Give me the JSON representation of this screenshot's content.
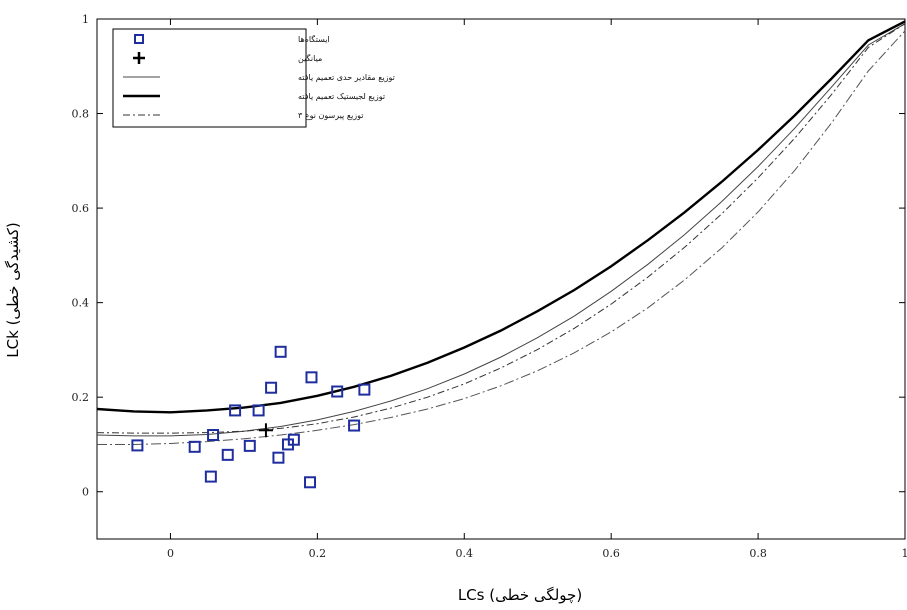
{
  "chart_data": {
    "type": "scatter",
    "xlabel": "LCs (چولگی خطی)",
    "ylabel": "LCk (کشیدگی خطی)",
    "xlim": [
      -0.1,
      1.0
    ],
    "ylim": [
      -0.1,
      1.0
    ],
    "xticks": [
      0,
      0.2,
      0.4,
      0.6,
      0.8,
      1
    ],
    "yticks": [
      0,
      0.2,
      0.4,
      0.6,
      0.8,
      1
    ],
    "x_tick_labels": [
      "0",
      "0.2",
      "0.4",
      "0.6",
      "0.8",
      "1"
    ],
    "y_tick_labels": [
      "0",
      "0.2",
      "0.4",
      "0.6",
      "0.8",
      "1"
    ],
    "grid": false,
    "legend_position": "top-left",
    "legend": [
      {
        "label": "ایستگاه‌ها",
        "style": "square-marker",
        "color": "#1f2e9e"
      },
      {
        "label": "میانگین",
        "style": "plus-marker",
        "color": "#000000"
      },
      {
        "label": "توزیع مقادیر حدی تعمیم یافته",
        "style": "thin-solid",
        "color": "#444444"
      },
      {
        "label": "توزیع لجیستیک تعمیم یافته",
        "style": "thick-solid",
        "color": "#000000"
      },
      {
        "label": "توزیع پیرسون نوع ۳",
        "style": "dash-dot",
        "color": "#333333"
      }
    ],
    "series": [
      {
        "name": "ایستگاه‌ها",
        "type": "scatter",
        "marker": "square",
        "color": "#1f2e9e",
        "points": [
          [
            -0.045,
            0.098
          ],
          [
            0.033,
            0.095
          ],
          [
            0.055,
            0.032
          ],
          [
            0.058,
            0.12
          ],
          [
            0.078,
            0.078
          ],
          [
            0.088,
            0.172
          ],
          [
            0.108,
            0.097
          ],
          [
            0.12,
            0.172
          ],
          [
            0.137,
            0.22
          ],
          [
            0.147,
            0.072
          ],
          [
            0.15,
            0.296
          ],
          [
            0.16,
            0.1
          ],
          [
            0.168,
            0.11
          ],
          [
            0.19,
            0.02
          ],
          [
            0.192,
            0.242
          ],
          [
            0.227,
            0.212
          ],
          [
            0.25,
            0.14
          ],
          [
            0.264,
            0.216
          ]
        ]
      },
      {
        "name": "میانگین",
        "type": "scatter",
        "marker": "plus",
        "color": "#000000",
        "points": [
          [
            0.13,
            0.13
          ]
        ]
      },
      {
        "name": "توزیع لجیستیک تعمیم یافته",
        "type": "line",
        "style": "thick-solid",
        "color": "#000000",
        "x": [
          -0.1,
          -0.05,
          0,
          0.05,
          0.1,
          0.15,
          0.2,
          0.25,
          0.3,
          0.35,
          0.4,
          0.45,
          0.5,
          0.55,
          0.6,
          0.65,
          0.7,
          0.75,
          0.8,
          0.85,
          0.9,
          0.95,
          1.0
        ],
        "y": [
          0.175,
          0.17,
          0.168,
          0.172,
          0.178,
          0.188,
          0.203,
          0.222,
          0.245,
          0.273,
          0.305,
          0.341,
          0.382,
          0.427,
          0.477,
          0.532,
          0.591,
          0.655,
          0.723,
          0.796,
          0.874,
          0.955,
          0.995
        ]
      },
      {
        "name": "توزیع مقادیر حدی تعمیم یافته",
        "type": "line",
        "style": "thin-solid",
        "color": "#444444",
        "x": [
          -0.1,
          -0.05,
          0,
          0.05,
          0.1,
          0.15,
          0.2,
          0.25,
          0.3,
          0.35,
          0.4,
          0.45,
          0.5,
          0.55,
          0.6,
          0.65,
          0.7,
          0.75,
          0.8,
          0.85,
          0.9,
          0.95,
          1.0
        ],
        "y": [
          0.12,
          0.118,
          0.118,
          0.121,
          0.128,
          0.138,
          0.152,
          0.17,
          0.192,
          0.218,
          0.249,
          0.285,
          0.326,
          0.372,
          0.424,
          0.481,
          0.544,
          0.613,
          0.688,
          0.769,
          0.856,
          0.945,
          0.99
        ]
      },
      {
        "name": "توزیع پیرسون نوع ۳",
        "type": "line",
        "style": "dash-dot",
        "color": "#333333",
        "x": [
          -0.1,
          -0.05,
          0,
          0.05,
          0.1,
          0.15,
          0.2,
          0.25,
          0.3,
          0.35,
          0.4,
          0.45,
          0.5,
          0.55,
          0.6,
          0.65,
          0.7,
          0.75,
          0.8,
          0.85,
          0.9,
          0.95,
          1.0
        ],
        "y": [
          0.125,
          0.124,
          0.124,
          0.125,
          0.128,
          0.134,
          0.144,
          0.158,
          0.177,
          0.2,
          0.228,
          0.262,
          0.301,
          0.346,
          0.397,
          0.454,
          0.517,
          0.587,
          0.664,
          0.748,
          0.84,
          0.94,
          0.99
        ]
      },
      {
        "name": "",
        "type": "line",
        "style": "thin-dashdot",
        "color": "#555555",
        "x": [
          -0.1,
          -0.05,
          0,
          0.05,
          0.1,
          0.15,
          0.2,
          0.25,
          0.3,
          0.35,
          0.4,
          0.45,
          0.5,
          0.55,
          0.6,
          0.65,
          0.7,
          0.75,
          0.8,
          0.85,
          0.9,
          0.95,
          1.0
        ],
        "y": [
          0.1,
          0.1,
          0.102,
          0.106,
          0.112,
          0.12,
          0.13,
          0.142,
          0.157,
          0.175,
          0.197,
          0.224,
          0.256,
          0.294,
          0.338,
          0.389,
          0.448,
          0.515,
          0.592,
          0.68,
          0.78,
          0.89,
          0.975
        ]
      }
    ]
  }
}
